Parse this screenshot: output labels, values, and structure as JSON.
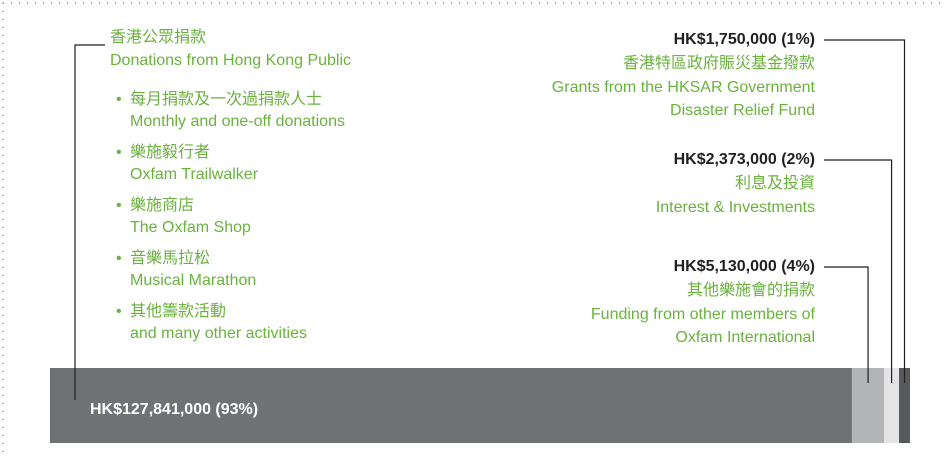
{
  "chart_data": {
    "type": "stacked-bar",
    "series": [
      {
        "name": "香港公眾捐款",
        "name_en": [
          "Donations from Hong Kong Public"
        ],
        "color": "#707173",
        "values": [
          127841000
        ],
        "value_labels": [
          "HK$127,841,000 (93%)"
        ],
        "items": [
          {
            "zh": "每月捐款及一次過捐款人士",
            "en": "Monthly and one-off donations"
          },
          {
            "zh": "樂施毅行者",
            "en": "Oxfam Trailwalker"
          },
          {
            "zh": "樂施商店",
            "en": "The Oxfam Shop"
          },
          {
            "zh": "音樂馬拉松",
            "en": "Musical Marathon"
          },
          {
            "zh": "其他籌款活動",
            "en": "and many other activities"
          }
        ]
      },
      {
        "name": "其他樂施會的捐款",
        "name_en": [
          "Funding from other members of",
          "Oxfam International"
        ],
        "color": "#b3b4b6",
        "values": [
          5130000
        ],
        "value_labels": [
          "HK$5,130,000 (4%)"
        ]
      },
      {
        "name": "利息及投資",
        "name_en": [
          "Interest & Investments"
        ],
        "color": "#e4e4e5",
        "values": [
          2373000
        ],
        "value_labels": [
          "HK$2,373,000 (2%)"
        ]
      },
      {
        "name": "香港特區政府賑災基金撥款",
        "name_en": [
          "Grants from the HKSAR Government",
          "Disaster Relief Fund"
        ],
        "color": "#58595b",
        "values": [
          1750000
        ],
        "value_labels": [
          "HK$1,750,000 (1%)"
        ]
      }
    ]
  }
}
